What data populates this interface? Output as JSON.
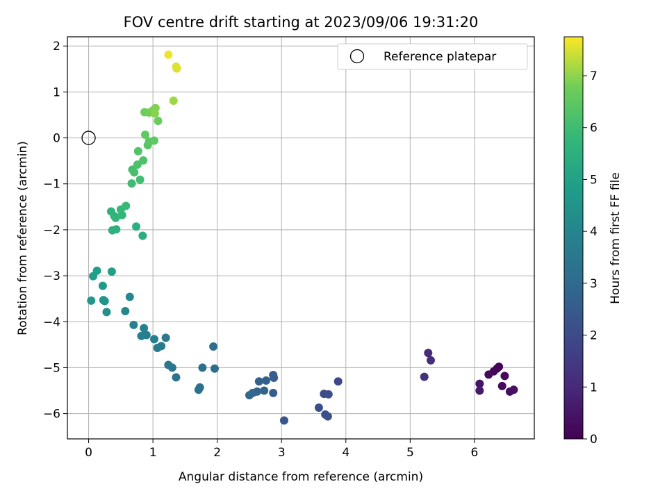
{
  "chart_data": {
    "type": "scatter",
    "title": "FOV centre drift starting at 2023/09/06 19:31:20",
    "xlabel": "Angular distance from reference (arcmin)",
    "ylabel": "Rotation from reference (arcmin)",
    "xlim": [
      -0.33,
      6.93
    ],
    "ylim": [
      -6.55,
      2.2
    ],
    "x_ticks": [
      0,
      1,
      2,
      3,
      4,
      5,
      6
    ],
    "y_ticks": [
      -6,
      -5,
      -4,
      -3,
      -2,
      -1,
      0,
      1,
      2
    ],
    "grid": true,
    "legend": {
      "position": "top-right",
      "entries": [
        "Reference platepar"
      ]
    },
    "reference_point": {
      "x": 0,
      "y": 0
    },
    "colorbar": {
      "label": "Hours from first FF file",
      "colormap": "viridis",
      "range": [
        0,
        7.75
      ],
      "ticks": [
        0,
        1,
        2,
        3,
        4,
        5,
        6,
        7
      ]
    },
    "points": [
      {
        "x": 6.38,
        "y": -4.98,
        "c": 0.05
      },
      {
        "x": 6.35,
        "y": -5.02,
        "c": 0.1
      },
      {
        "x": 6.3,
        "y": -5.08,
        "c": 0.15
      },
      {
        "x": 6.47,
        "y": -5.18,
        "c": 0.2
      },
      {
        "x": 6.22,
        "y": -5.15,
        "c": 0.25
      },
      {
        "x": 6.43,
        "y": -5.4,
        "c": 0.3
      },
      {
        "x": 6.55,
        "y": -5.52,
        "c": 0.35
      },
      {
        "x": 6.61,
        "y": -5.48,
        "c": 0.4
      },
      {
        "x": 6.08,
        "y": -5.35,
        "c": 0.5
      },
      {
        "x": 6.08,
        "y": -5.5,
        "c": 0.6
      },
      {
        "x": 5.28,
        "y": -4.68,
        "c": 1.1
      },
      {
        "x": 5.32,
        "y": -4.84,
        "c": 1.15
      },
      {
        "x": 5.22,
        "y": -5.2,
        "c": 1.25
      },
      {
        "x": 3.88,
        "y": -5.3,
        "c": 1.9
      },
      {
        "x": 3.66,
        "y": -5.57,
        "c": 2.0
      },
      {
        "x": 3.73,
        "y": -5.58,
        "c": 2.05
      },
      {
        "x": 3.58,
        "y": -5.87,
        "c": 2.1
      },
      {
        "x": 3.68,
        "y": -6.02,
        "c": 2.15
      },
      {
        "x": 3.72,
        "y": -6.06,
        "c": 2.2
      },
      {
        "x": 3.04,
        "y": -6.15,
        "c": 2.3
      },
      {
        "x": 2.87,
        "y": -5.16,
        "c": 2.5
      },
      {
        "x": 2.88,
        "y": -5.22,
        "c": 2.55
      },
      {
        "x": 2.87,
        "y": -5.55,
        "c": 2.6
      },
      {
        "x": 2.76,
        "y": -5.28,
        "c": 2.65
      },
      {
        "x": 2.65,
        "y": -5.3,
        "c": 2.7
      },
      {
        "x": 2.73,
        "y": -5.5,
        "c": 2.75
      },
      {
        "x": 2.62,
        "y": -5.52,
        "c": 2.8
      },
      {
        "x": 2.55,
        "y": -5.55,
        "c": 2.85
      },
      {
        "x": 2.5,
        "y": -5.6,
        "c": 2.9
      },
      {
        "x": 1.94,
        "y": -4.54,
        "c": 3.05
      },
      {
        "x": 1.96,
        "y": -5.02,
        "c": 3.1
      },
      {
        "x": 1.77,
        "y": -5.0,
        "c": 3.15
      },
      {
        "x": 1.73,
        "y": -5.43,
        "c": 3.2
      },
      {
        "x": 1.71,
        "y": -5.48,
        "c": 3.25
      },
      {
        "x": 1.36,
        "y": -5.21,
        "c": 3.35
      },
      {
        "x": 1.3,
        "y": -5.0,
        "c": 3.4
      },
      {
        "x": 1.24,
        "y": -4.94,
        "c": 3.45
      },
      {
        "x": 1.2,
        "y": -4.35,
        "c": 3.55
      },
      {
        "x": 1.13,
        "y": -4.53,
        "c": 3.6
      },
      {
        "x": 1.07,
        "y": -4.57,
        "c": 3.65
      },
      {
        "x": 1.02,
        "y": -4.38,
        "c": 3.7
      },
      {
        "x": 0.9,
        "y": -4.29,
        "c": 3.75
      },
      {
        "x": 0.82,
        "y": -4.31,
        "c": 3.8
      },
      {
        "x": 0.86,
        "y": -4.14,
        "c": 3.85
      },
      {
        "x": 0.7,
        "y": -4.07,
        "c": 3.9
      },
      {
        "x": 0.64,
        "y": -3.46,
        "c": 4.0
      },
      {
        "x": 0.57,
        "y": -3.77,
        "c": 4.05
      },
      {
        "x": 0.28,
        "y": -3.79,
        "c": 4.4
      },
      {
        "x": 0.25,
        "y": -3.55,
        "c": 4.45
      },
      {
        "x": 0.23,
        "y": -3.53,
        "c": 4.5
      },
      {
        "x": 0.04,
        "y": -3.54,
        "c": 4.6
      },
      {
        "x": 0.22,
        "y": -3.22,
        "c": 4.7
      },
      {
        "x": 0.07,
        "y": -3.01,
        "c": 4.85
      },
      {
        "x": 0.13,
        "y": -2.89,
        "c": 4.9
      },
      {
        "x": 0.36,
        "y": -2.91,
        "c": 4.95
      },
      {
        "x": 0.84,
        "y": -2.13,
        "c": 5.4
      },
      {
        "x": 0.74,
        "y": -1.93,
        "c": 5.45
      },
      {
        "x": 0.37,
        "y": -2.01,
        "c": 5.5
      },
      {
        "x": 0.43,
        "y": -1.99,
        "c": 5.55
      },
      {
        "x": 0.35,
        "y": -1.6,
        "c": 5.6
      },
      {
        "x": 0.4,
        "y": -1.7,
        "c": 5.65
      },
      {
        "x": 0.42,
        "y": -1.74,
        "c": 5.7
      },
      {
        "x": 0.52,
        "y": -1.68,
        "c": 5.75
      },
      {
        "x": 0.5,
        "y": -1.56,
        "c": 5.8
      },
      {
        "x": 0.58,
        "y": -1.48,
        "c": 5.85
      },
      {
        "x": 0.67,
        "y": -0.99,
        "c": 6.0
      },
      {
        "x": 0.8,
        "y": -0.91,
        "c": 6.05
      },
      {
        "x": 0.68,
        "y": -0.69,
        "c": 6.1
      },
      {
        "x": 0.71,
        "y": -0.75,
        "c": 6.15
      },
      {
        "x": 0.76,
        "y": -0.58,
        "c": 6.2
      },
      {
        "x": 0.85,
        "y": -0.49,
        "c": 6.25
      },
      {
        "x": 0.77,
        "y": -0.29,
        "c": 6.3
      },
      {
        "x": 0.92,
        "y": -0.16,
        "c": 6.4
      },
      {
        "x": 0.94,
        "y": -0.08,
        "c": 6.45
      },
      {
        "x": 1.02,
        "y": -0.06,
        "c": 6.5
      },
      {
        "x": 0.88,
        "y": 0.07,
        "c": 6.55
      },
      {
        "x": 1.08,
        "y": 0.37,
        "c": 6.7
      },
      {
        "x": 0.87,
        "y": 0.56,
        "c": 6.75
      },
      {
        "x": 0.94,
        "y": 0.55,
        "c": 6.8
      },
      {
        "x": 1.0,
        "y": 0.6,
        "c": 6.85
      },
      {
        "x": 1.04,
        "y": 0.65,
        "c": 6.9
      },
      {
        "x": 1.03,
        "y": 0.53,
        "c": 6.95
      },
      {
        "x": 1.32,
        "y": 0.81,
        "c": 7.1
      },
      {
        "x": 1.37,
        "y": 1.51,
        "c": 7.5
      },
      {
        "x": 1.36,
        "y": 1.55,
        "c": 7.55
      },
      {
        "x": 1.24,
        "y": 1.81,
        "c": 7.65
      }
    ]
  }
}
